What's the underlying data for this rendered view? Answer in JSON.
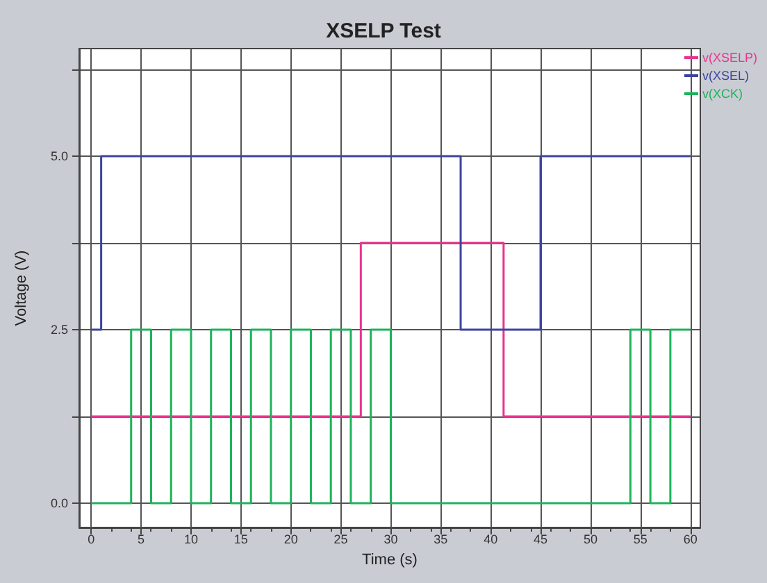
{
  "chart_data": {
    "type": "step",
    "title": "XSELP Test",
    "xlabel": "Time (s)",
    "ylabel": "Voltage (V)",
    "xlim": [
      -1.2,
      61
    ],
    "ylim": [
      -0.35,
      6.55
    ],
    "xticks": [
      0,
      5,
      10,
      15,
      20,
      25,
      30,
      35,
      40,
      45,
      50,
      55,
      60
    ],
    "yticks": [
      {
        "value": 0,
        "label": "0.0"
      },
      {
        "value": 1.25,
        "label": null
      },
      2.5,
      {
        "value": 3.75,
        "label": null
      },
      {
        "value": 5,
        "label": "5.0"
      },
      {
        "value": 6.25,
        "label": null
      }
    ],
    "grid": true,
    "legend": "top right",
    "marker": "none",
    "line_style": "solid",
    "series": [
      {
        "name": "v(XSELP)",
        "color": "#e8348f",
        "x": [
          0,
          27,
          41.3,
          60
        ],
        "values": [
          1.25,
          3.75,
          1.25,
          1.25
        ]
      },
      {
        "name": "v(XSEL)",
        "color": "#3c44a0",
        "x": [
          0,
          1,
          37,
          45,
          60
        ],
        "values": [
          2.5,
          5,
          2.5,
          5,
          5
        ]
      },
      {
        "name": "v(XCK)",
        "color": "#1db35a",
        "x": [
          0,
          4,
          6,
          8,
          10,
          12,
          14,
          16,
          18,
          20,
          22,
          24,
          26,
          28,
          30,
          54,
          56,
          58,
          60
        ],
        "values": [
          0,
          2.5,
          0,
          2.5,
          0,
          2.5,
          0,
          2.5,
          0,
          2.5,
          0,
          2.5,
          0,
          2.5,
          0,
          2.5,
          0,
          2.5,
          2.5
        ]
      }
    ]
  }
}
